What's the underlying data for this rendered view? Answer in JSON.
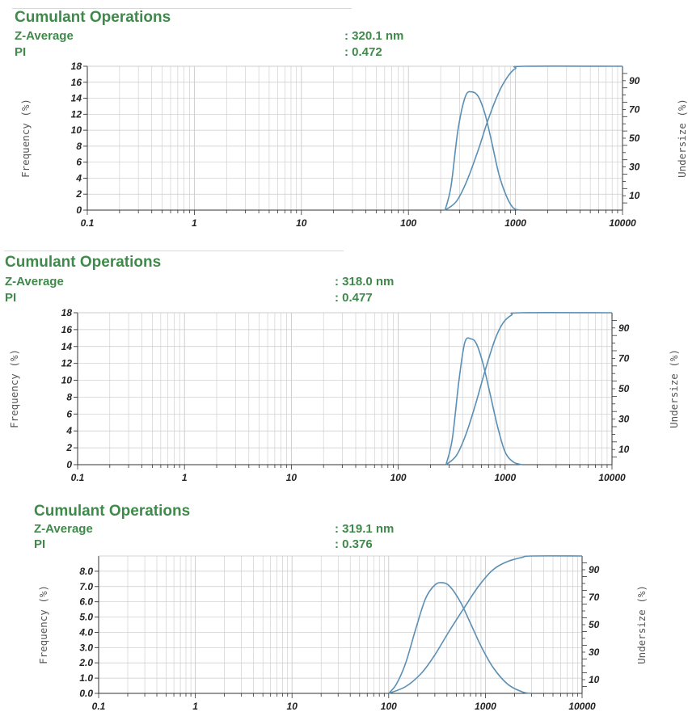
{
  "panels": [
    {
      "heading": "Cumulant Operations",
      "zavg_label": "Z-Average",
      "zavg_value": ":  320.1 nm",
      "pi_label": "PI",
      "pi_value": ":  0.472"
    },
    {
      "heading": "Cumulant Operations",
      "zavg_label": "Z-Average",
      "zavg_value": ":  318.0 nm",
      "pi_label": "PI",
      "pi_value": ":  0.477"
    },
    {
      "heading": "Cumulant Operations",
      "zavg_label": "Z-Average",
      "zavg_value": ":  319.1 nm",
      "pi_label": "PI",
      "pi_value": ":  0.376"
    }
  ],
  "colors": {
    "heading": "#3f8a4a",
    "curve": "#5a8fb5",
    "grid": "#c9c9c9",
    "axis": "#333333"
  },
  "chart_data": [
    {
      "type": "line",
      "xscale": "log",
      "xlim": [
        0.1,
        10000
      ],
      "x_ticks": [
        "0.1",
        "1",
        "10",
        "100",
        "1000",
        "10000"
      ],
      "ylabel": "Frequency (%)",
      "ylim": [
        0,
        18
      ],
      "y_ticks": [
        "0",
        "2",
        "4",
        "6",
        "8",
        "10",
        "12",
        "14",
        "16",
        "18"
      ],
      "y2label": "Undersize (%)",
      "y2lim": [
        0,
        100
      ],
      "y2_ticks": [
        "10",
        "30",
        "50",
        "70",
        "90"
      ],
      "grid": true,
      "series": [
        {
          "axis": "left",
          "x": [
            220,
            250,
            290,
            340,
            390,
            450,
            520,
            600,
            700,
            820,
            950,
            1100
          ],
          "y": [
            0,
            3,
            10,
            14.2,
            14.8,
            14.2,
            12,
            8.5,
            4.5,
            1.8,
            0.3,
            0
          ]
        },
        {
          "axis": "right",
          "x": [
            220,
            280,
            350,
            450,
            550,
            700,
            850,
            1000,
            1200,
            10000
          ],
          "y": [
            0,
            6,
            20,
            42,
            62,
            82,
            93,
            98.5,
            100,
            100
          ]
        }
      ]
    },
    {
      "type": "line",
      "xscale": "log",
      "xlim": [
        0.1,
        10000
      ],
      "x_ticks": [
        "0.1",
        "1",
        "10",
        "100",
        "1000",
        "10000"
      ],
      "ylabel": "Frequency (%)",
      "ylim": [
        0,
        18
      ],
      "y_ticks": [
        "0",
        "2",
        "4",
        "6",
        "8",
        "10",
        "12",
        "14",
        "16",
        "18"
      ],
      "y2label": "Undersize (%)",
      "y2lim": [
        0,
        100
      ],
      "y2_ticks": [
        "10",
        "30",
        "50",
        "70",
        "90"
      ],
      "grid": true,
      "series": [
        {
          "axis": "left",
          "x": [
            280,
            320,
            370,
            420,
            480,
            540,
            620,
            720,
            850,
            1000,
            1200,
            1450
          ],
          "y": [
            0,
            3,
            10,
            14.5,
            14.9,
            14.3,
            12,
            8.5,
            4.5,
            1.5,
            0.3,
            0
          ]
        },
        {
          "axis": "right",
          "x": [
            280,
            350,
            430,
            530,
            650,
            800,
            950,
            1150,
            1400,
            10000
          ],
          "y": [
            0,
            6,
            20,
            40,
            62,
            82,
            93,
            98.5,
            100,
            100
          ]
        }
      ]
    },
    {
      "type": "line",
      "xscale": "log",
      "xlim": [
        0.1,
        10000
      ],
      "x_ticks": [
        "0.1",
        "1",
        "10",
        "100",
        "1000",
        "10000"
      ],
      "ylabel": "Frequency (%)",
      "ylim": [
        0,
        9
      ],
      "y_ticks": [
        "0.0",
        "1.0",
        "2.0",
        "3.0",
        "4.0",
        "5.0",
        "6.0",
        "7.0",
        "8.0"
      ],
      "y2label": "Undersize (%)",
      "y2lim": [
        0,
        100
      ],
      "y2_ticks": [
        "10",
        "30",
        "50",
        "70",
        "90"
      ],
      "grid": true,
      "series": [
        {
          "axis": "left",
          "x": [
            100,
            120,
            150,
            190,
            240,
            300,
            360,
            430,
            550,
            700,
            900,
            1200,
            1700,
            2400,
            3000
          ],
          "y": [
            0,
            0.6,
            2,
            4.2,
            6.2,
            7.1,
            7.25,
            7,
            6,
            4.6,
            3.1,
            1.7,
            0.6,
            0.1,
            0
          ]
        },
        {
          "axis": "right",
          "x": [
            100,
            150,
            220,
            300,
            420,
            600,
            850,
            1200,
            1700,
            2400,
            3000,
            10000
          ],
          "y": [
            0,
            5,
            15,
            28,
            45,
            62,
            78,
            90,
            96,
            99,
            100,
            100
          ]
        }
      ]
    }
  ]
}
